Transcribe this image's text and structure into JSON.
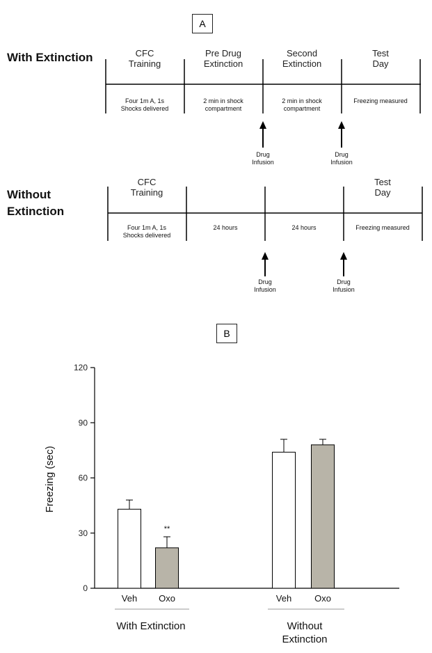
{
  "panel_a": {
    "label": "A",
    "with_extinction": {
      "title": "With Extinction",
      "phases": [
        "CFC\nTraining",
        "Pre Drug\nExtinction",
        "Second\nExtinction",
        "Test\nDay"
      ],
      "cells": [
        "Four 1m A, 1s\nShocks delivered",
        "2 min in shock\ncompartment",
        "2 min in shock\ncompartment",
        "Freezing measured"
      ],
      "drug_labels": [
        "Drug\nInfusion",
        "Drug\nInfusion"
      ]
    },
    "without_extinction": {
      "title": "Without\nExtinction",
      "phases": [
        "CFC\nTraining",
        "",
        "",
        "Test\nDay"
      ],
      "cells": [
        "Four 1m A, 1s\nShocks delivered",
        "24 hours",
        "24 hours",
        "Freezing measured"
      ],
      "drug_labels": [
        "Drug\nInfusion",
        "Drug\nInfusion"
      ]
    }
  },
  "panel_b": {
    "label": "B",
    "significance_marker": "**",
    "group_labels": [
      "With Extinction",
      "Without\nExtinction"
    ]
  },
  "chart_data": {
    "type": "bar",
    "ylabel": "Freezing (sec)",
    "ylim": [
      0,
      120
    ],
    "yticks": [
      0,
      30,
      60,
      90,
      120
    ],
    "categories": [
      "Veh",
      "Oxo",
      "Veh",
      "Oxo"
    ],
    "values": [
      43,
      22,
      74,
      78
    ],
    "errors": [
      5,
      6,
      7,
      3
    ],
    "groups": [
      "With Extinction",
      "With Extinction",
      "Without Extinction",
      "Without Extinction"
    ],
    "colors": {
      "Veh": "#ffffff",
      "Oxo": "#b8b4a8"
    }
  }
}
